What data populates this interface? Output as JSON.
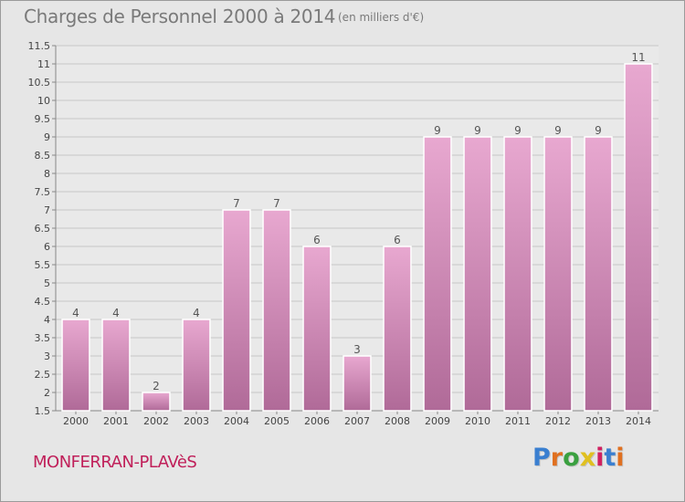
{
  "header": {
    "title": "Charges de Personnel 2000 à 2014",
    "subtitle": "(en milliers d'€)"
  },
  "footer": {
    "commune": "MONFERRAN-PLAVèS",
    "logo_text": "Proxiti",
    "logo_colors": [
      "#3a7fd0",
      "#e07020",
      "#3aa040",
      "#e0c020",
      "#d02060",
      "#3a7fd0",
      "#e07020"
    ]
  },
  "colors": {
    "bar_fill_top": "#e8a8d0",
    "bar_fill_bottom": "#b06a98",
    "axis": "#888888",
    "grid": "#c8c8c8",
    "tick_text": "#444444",
    "label_text": "#555555"
  },
  "chart_data": {
    "type": "bar",
    "title": "Charges de Personnel 2000 à 2014",
    "subtitle": "(en milliers d'€)",
    "xlabel": "",
    "ylabel": "",
    "categories": [
      "2000",
      "2001",
      "2002",
      "2003",
      "2004",
      "2005",
      "2006",
      "2007",
      "2008",
      "2009",
      "2010",
      "2011",
      "2012",
      "2013",
      "2014"
    ],
    "values": [
      4,
      4,
      2,
      4,
      7,
      7,
      6,
      3,
      6,
      9,
      9,
      9,
      9,
      9,
      11
    ],
    "data_labels": [
      "4",
      "4",
      "2",
      "4",
      "7",
      "7",
      "6",
      "3",
      "6",
      "9",
      "9",
      "9",
      "9",
      "9",
      "11"
    ],
    "ylim": [
      1.5,
      11.5
    ],
    "yticks": [
      1.5,
      2,
      2.5,
      3,
      3.5,
      4,
      4.5,
      5,
      5.5,
      6,
      6.5,
      7,
      7.5,
      8,
      8.5,
      9,
      9.5,
      10,
      10.5,
      11,
      11.5
    ],
    "ytick_labels": [
      "1.5",
      "2",
      "2.5",
      "3",
      "3.5",
      "4",
      "4.5",
      "5",
      "5.5",
      "6",
      "6.5",
      "7",
      "7.5",
      "8",
      "8.5",
      "9",
      "9.5",
      "10",
      "10.5",
      "11",
      "11.5"
    ],
    "grid": true,
    "legend": "none"
  }
}
